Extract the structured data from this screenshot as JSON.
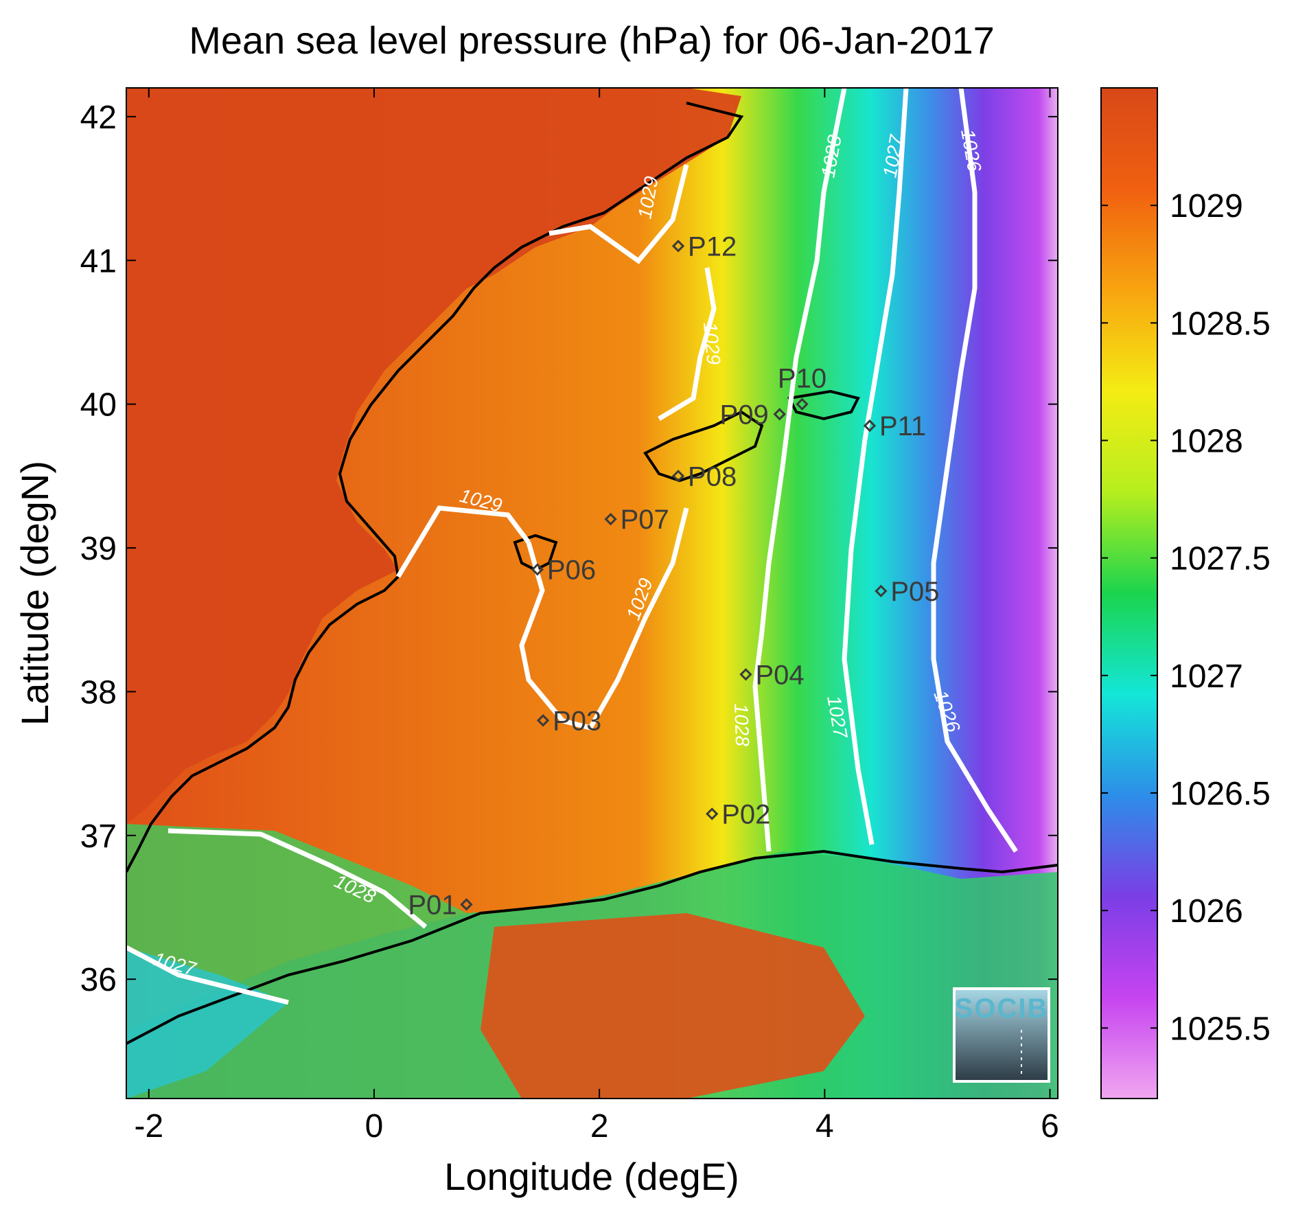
{
  "title": "Mean sea level pressure (hPa) for 06-Jan-2017",
  "xlabel": "Longitude (degE)",
  "ylabel": "Latitude (degN)",
  "x_ticks": [
    "-2",
    "0",
    "2",
    "4",
    "6"
  ],
  "y_ticks": [
    "36",
    "37",
    "38",
    "39",
    "40",
    "41",
    "42"
  ],
  "colorbar": {
    "range": [
      1025.2,
      1029.5
    ],
    "ticks": [
      "1025.5",
      "1026",
      "1026.5",
      "1027",
      "1027.5",
      "1028",
      "1028.5",
      "1029"
    ],
    "colors": [
      "#f0a6f0",
      "#c644f0",
      "#7b3ee6",
      "#2d8ee8",
      "#14e6d8",
      "#1bd44e",
      "#b6ee1e",
      "#f4ec14",
      "#f8a410",
      "#f06010",
      "#d84818"
    ]
  },
  "contour_labels": [
    "1029",
    "1029",
    "1029",
    "1029",
    "1028",
    "1027",
    "1026",
    "1028",
    "1027",
    "1026",
    "1028",
    "1027"
  ],
  "points": [
    {
      "label": "P01",
      "lon": 0.82,
      "lat": 36.52
    },
    {
      "label": "P02",
      "lon": 3.0,
      "lat": 37.15
    },
    {
      "label": "P03",
      "lon": 1.5,
      "lat": 37.8
    },
    {
      "label": "P04",
      "lon": 3.3,
      "lat": 38.12
    },
    {
      "label": "P05",
      "lon": 4.5,
      "lat": 38.7
    },
    {
      "label": "P06",
      "lon": 1.45,
      "lat": 38.85
    },
    {
      "label": "P07",
      "lon": 2.1,
      "lat": 39.2
    },
    {
      "label": "P08",
      "lon": 2.7,
      "lat": 39.5
    },
    {
      "label": "P09",
      "lon": 3.6,
      "lat": 39.93
    },
    {
      "label": "P10",
      "lon": 3.8,
      "lat": 40.0
    },
    {
      "label": "P11",
      "lon": 4.4,
      "lat": 39.85
    },
    {
      "label": "P12",
      "lon": 2.7,
      "lat": 41.1
    }
  ],
  "logo": {
    "text": "SOCIB"
  }
}
